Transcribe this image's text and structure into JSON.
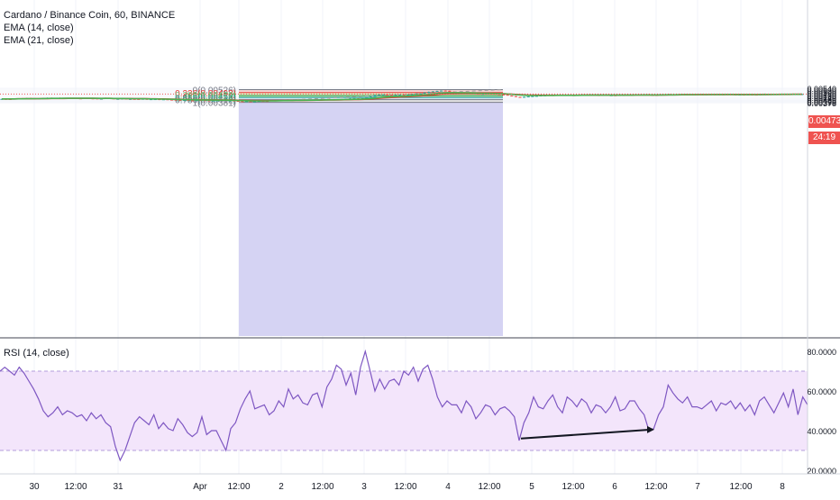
{
  "header": {
    "symbol_line": "Cardano / Binance Coin, 60, BINANCE",
    "ema14_label": "EMA (14, close)",
    "ema21_label": "EMA (21, close)"
  },
  "rsi_pane": {
    "label": "RSI (14, close)"
  },
  "price_axis": {
    "ticks": [
      "0.00540",
      "0.00520",
      "0.00500",
      "0.00480",
      "0.00460",
      "0.00440",
      "0.00420",
      "0.00405",
      "0.00390",
      "0.00378"
    ],
    "current_price": "0.00473",
    "countdown": "24:19"
  },
  "rsi_axis": {
    "ticks": [
      "80.0000",
      "60.0000",
      "40.0000",
      "20.0000"
    ]
  },
  "time_axis": {
    "ticks": [
      "30",
      "12:00",
      "31",
      "Apr",
      "12:00",
      "2",
      "12:00",
      "3",
      "12:00",
      "4",
      "12:00",
      "5",
      "12:00",
      "6",
      "12:00",
      "7",
      "12:00",
      "8"
    ]
  },
  "fibonacci": {
    "levels": [
      {
        "label": "0(0.00526)",
        "value": 0.00526,
        "color": "#787b86"
      },
      {
        "label": "0.236(0.00492)",
        "value": 0.00492,
        "color": "#e53935"
      },
      {
        "label": "0.382(0.00470)",
        "value": 0.0047,
        "color": "#81c784"
      },
      {
        "label": "0.5(0.00453)",
        "value": 0.00453,
        "color": "#43a047"
      },
      {
        "label": "0.618(0.00436)",
        "value": 0.00436,
        "color": "#26a69a"
      },
      {
        "label": "0.786(0.00412)",
        "value": 0.00412,
        "color": "#787b86"
      },
      {
        "label": "1(0.00381)",
        "value": 0.00381,
        "color": "#787b86"
      }
    ],
    "zone_colors": [
      "#f4cccc",
      "#eef6c9",
      "#d6efd5",
      "#cdebe4",
      "#d4e6f3",
      "#e3e3e3",
      "#d5d3f3"
    ]
  },
  "colors": {
    "up": "#26a69a",
    "down": "#ef5350",
    "ema14": "#4caf50",
    "ema21": "#e53935",
    "rsi": "#7e57c2",
    "rsi_band": "#f3e5fb",
    "price_tag": "#ef5350",
    "countdown_tag": "#ef5350"
  },
  "chart_data": [
    {
      "type": "candlestick",
      "title": "Cardano / Binance Coin, 60, BINANCE",
      "ylim": [
        0.00371,
        0.00544
      ],
      "key_points": {
        "x": [
          "30",
          "31",
          "Apr",
          "2",
          "3",
          "4",
          "5",
          "6",
          "7",
          "8"
        ],
        "close": [
          0.0043,
          0.00424,
          0.00404,
          0.00404,
          0.00425,
          0.005,
          0.0046,
          0.00466,
          0.0047,
          0.00473
        ]
      },
      "swing_low": 0.00381,
      "swing_high": 0.00526,
      "series": [
        {
          "name": "EMA (14, close)"
        },
        {
          "name": "EMA (21, close)"
        }
      ]
    },
    {
      "type": "line",
      "title": "RSI (14, close)",
      "ylim": [
        20,
        82
      ],
      "bands": [
        30,
        70
      ],
      "values": [
        70,
        72,
        70,
        68,
        72,
        69,
        65,
        61,
        56,
        50,
        47,
        49,
        52,
        48,
        50,
        49,
        47,
        48,
        45,
        49,
        46,
        48,
        44,
        42,
        32,
        25,
        30,
        37,
        44,
        47,
        45,
        43,
        48,
        41,
        44,
        41,
        40,
        46,
        43,
        39,
        37,
        39,
        47,
        38,
        40,
        40,
        35,
        30,
        41,
        44,
        51,
        56,
        60,
        51,
        52,
        53,
        48,
        50,
        55,
        52,
        61,
        56,
        58,
        54,
        53,
        58,
        59,
        52,
        62,
        66,
        73,
        71,
        63,
        69,
        58,
        72,
        80,
        70,
        60,
        66,
        61,
        65,
        66,
        63,
        70,
        68,
        72,
        65,
        71,
        73,
        66,
        57,
        52,
        55,
        53,
        53,
        49,
        55,
        52,
        46,
        49,
        53,
        52,
        48,
        51,
        52,
        50,
        47,
        35,
        44,
        49,
        57,
        52,
        51,
        55,
        58,
        52,
        49,
        57,
        55,
        52,
        56,
        54,
        49,
        53,
        52,
        49,
        52,
        57,
        50,
        51,
        55,
        55,
        51,
        48,
        40,
        41,
        48,
        52,
        63,
        59,
        56,
        54,
        57,
        52,
        52,
        51,
        53,
        55,
        50,
        54,
        53,
        55,
        51,
        54,
        50,
        53,
        48,
        55,
        57,
        53,
        49,
        54,
        59,
        52,
        61,
        48,
        57,
        53
      ],
      "annotation": {
        "type": "trendline",
        "from": 36,
        "to": 40.5
      }
    }
  ]
}
